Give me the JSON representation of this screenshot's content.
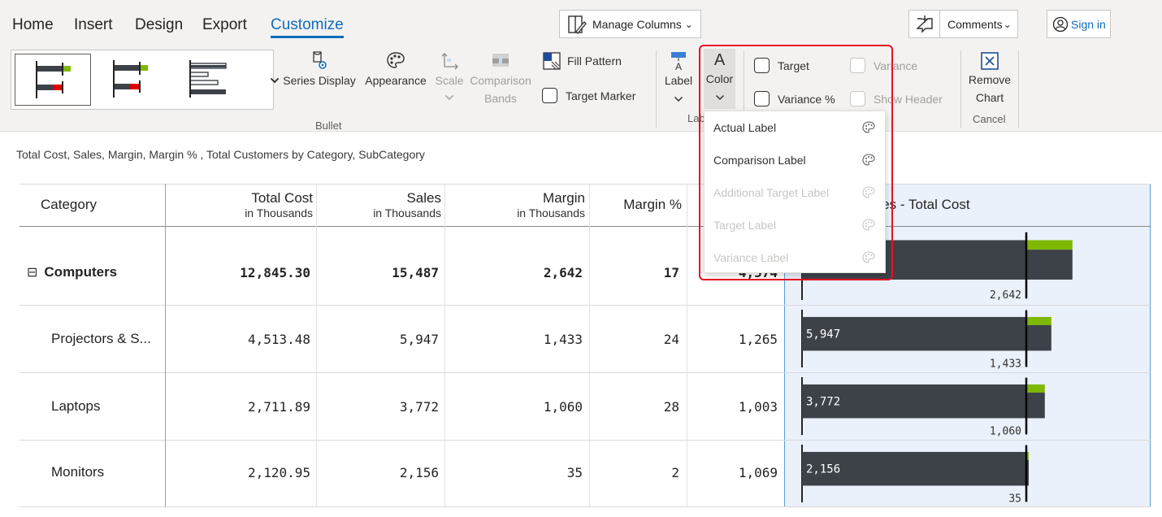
{
  "menu": {
    "tabs": [
      {
        "label": "Home"
      },
      {
        "label": "Insert"
      },
      {
        "label": "Design"
      },
      {
        "label": "Export"
      },
      {
        "label": "Customize",
        "active": true
      }
    ],
    "manage_columns": "Manage Columns",
    "comments": "Comments",
    "sign_in": "Sign in"
  },
  "ribbon": {
    "gallery_group_label": "Bullet",
    "series_display": "Series Display",
    "appearance": "Appearance",
    "scale": "Scale",
    "comparison_bands": "Comparison Bands",
    "fill_pattern": "Fill Pattern",
    "target_marker": "Target Marker",
    "label": "Label",
    "color": "Color",
    "labels_group_label": "Lab",
    "target": "Target",
    "variance": "Variance",
    "variance_pct": "Variance %",
    "show_header": "Show Header",
    "remove_chart": "Remove Chart",
    "cancel": "Cancel"
  },
  "color_menu": {
    "items": [
      {
        "label": "Actual Label",
        "enabled": true
      },
      {
        "label": "Comparison Label",
        "enabled": true
      },
      {
        "label": "Additional Target Label",
        "enabled": false
      },
      {
        "label": "Target Label",
        "enabled": false
      },
      {
        "label": "Variance Label",
        "enabled": false
      }
    ]
  },
  "subtitle": "Total Cost, Sales, Margin, Margin % , Total Customers by Category, SubCategory",
  "table": {
    "columns": [
      {
        "title": "Category",
        "sub": ""
      },
      {
        "title": "Total Cost",
        "sub": "in Thousands"
      },
      {
        "title": "Sales",
        "sub": "in Thousands"
      },
      {
        "title": "Margin",
        "sub": "in Thousands"
      },
      {
        "title": "Margin %",
        "sub": ""
      },
      {
        "title": "",
        "sub": ""
      }
    ],
    "chart_header": "Sales - Total Cost",
    "chart_header_visible": "ales - Total Cost",
    "rows": [
      {
        "category": "Computers",
        "expander": "⊟",
        "total_cost": "12,845.30",
        "sales": "15,487",
        "margin": "2,642",
        "margin_pct": "17",
        "customers": "4,574",
        "bold": true
      },
      {
        "category": "Projectors & S...",
        "total_cost": "4,513.48",
        "sales": "5,947",
        "margin": "1,433",
        "margin_pct": "24",
        "customers": "1,265"
      },
      {
        "category": "Laptops",
        "total_cost": "2,711.89",
        "sales": "3,772",
        "margin": "1,060",
        "margin_pct": "28",
        "customers": "1,003"
      },
      {
        "category": "Monitors",
        "total_cost": "2,120.95",
        "sales": "2,156",
        "margin": "35",
        "margin_pct": "2",
        "customers": "1,069"
      }
    ]
  },
  "colors": {
    "accent": "#0f6cbd",
    "bar_actual": "#3d4249",
    "bar_variance": "#7fb800",
    "target_line": "#000000",
    "highlight_box": "#e81123"
  },
  "chart_data": {
    "type": "bar",
    "categories": [
      "Computers",
      "Projectors & S...",
      "Laptops",
      "Monitors"
    ],
    "series": [
      {
        "name": "Sales",
        "values": [
          15487,
          5947,
          3772,
          2156
        ]
      },
      {
        "name": "Total Cost",
        "values": [
          12845.3,
          4513.48,
          2711.89,
          2120.95
        ]
      },
      {
        "name": "Margin",
        "values": [
          2642,
          1433,
          1060,
          35
        ]
      }
    ],
    "data_labels": {
      "sales": [
        "",
        "5,947",
        "3,772",
        "2,156"
      ],
      "margin": [
        "2,642",
        "1,433",
        "1,060",
        "35"
      ]
    },
    "title": "Sales - Total Cost"
  }
}
